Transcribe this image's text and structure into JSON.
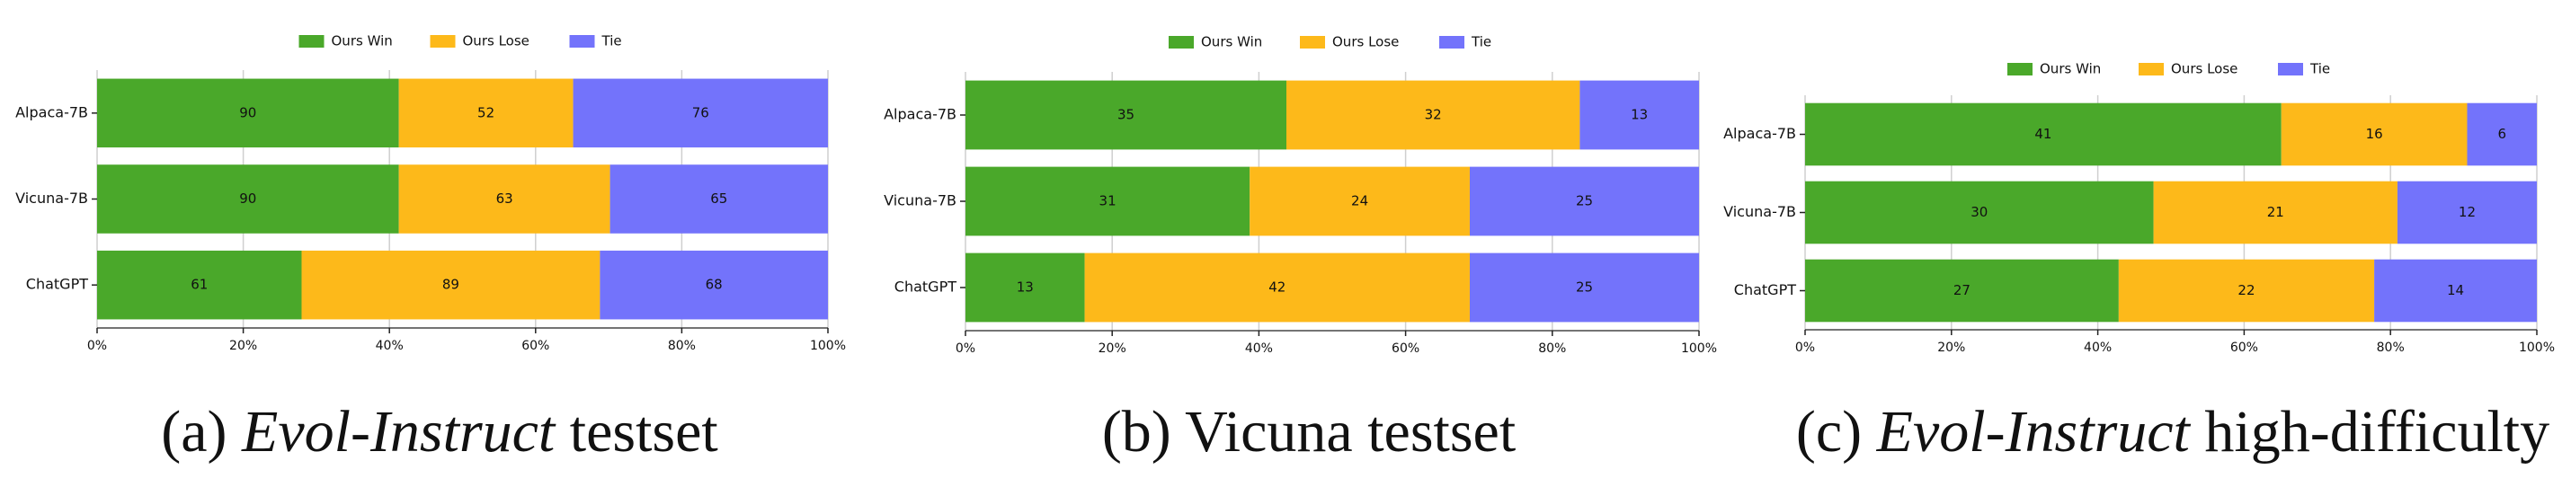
{
  "chart_data": [
    {
      "type": "bar",
      "orientation": "horizontal",
      "stacked": "percent",
      "grid": true,
      "legend": "top",
      "categories": [
        "Alpaca-7B",
        "Vicuna-7B",
        "ChatGPT"
      ],
      "series": [
        {
          "name": "Ours Win",
          "color": "#4aa82a",
          "values": [
            90,
            90,
            61
          ]
        },
        {
          "name": "Ours Lose",
          "color": "#fdb91a",
          "values": [
            52,
            63,
            89
          ]
        },
        {
          "name": "Tie",
          "color": "#7373fb",
          "values": [
            76,
            65,
            68
          ]
        }
      ],
      "xlim": [
        0,
        100
      ],
      "xticks": [
        {
          "value": 0,
          "label": "0%"
        },
        {
          "value": 20,
          "label": "20%"
        },
        {
          "value": 40,
          "label": "40%"
        },
        {
          "value": 60,
          "label": "60%"
        },
        {
          "value": 80,
          "label": "80%"
        },
        {
          "value": 100,
          "label": "100%"
        }
      ],
      "caption": [
        {
          "text": "(a) ",
          "italic": false
        },
        {
          "text": "Evol-Instruct",
          "italic": true
        },
        {
          "text": " testset",
          "italic": false
        }
      ]
    },
    {
      "type": "bar",
      "orientation": "horizontal",
      "stacked": "percent",
      "grid": true,
      "legend": "top",
      "categories": [
        "Alpaca-7B",
        "Vicuna-7B",
        "ChatGPT"
      ],
      "series": [
        {
          "name": "Ours Win",
          "color": "#4aa82a",
          "values": [
            35,
            31,
            13
          ]
        },
        {
          "name": "Ours Lose",
          "color": "#fdb91a",
          "values": [
            32,
            24,
            42
          ]
        },
        {
          "name": "Tie",
          "color": "#7373fb",
          "values": [
            13,
            25,
            25
          ]
        }
      ],
      "xlim": [
        0,
        100
      ],
      "xticks": [
        {
          "value": 0,
          "label": "0%"
        },
        {
          "value": 20,
          "label": "20%"
        },
        {
          "value": 40,
          "label": "40%"
        },
        {
          "value": 60,
          "label": "60%"
        },
        {
          "value": 80,
          "label": "80%"
        },
        {
          "value": 100,
          "label": "100%"
        }
      ],
      "caption": [
        {
          "text": "(b) Vicuna testset",
          "italic": false
        }
      ]
    },
    {
      "type": "bar",
      "orientation": "horizontal",
      "stacked": "percent",
      "grid": true,
      "legend": "top",
      "categories": [
        "Alpaca-7B",
        "Vicuna-7B",
        "ChatGPT"
      ],
      "series": [
        {
          "name": "Ours Win",
          "color": "#4aa82a",
          "values": [
            41,
            30,
            27
          ]
        },
        {
          "name": "Ours Lose",
          "color": "#fdb91a",
          "values": [
            16,
            21,
            22
          ]
        },
        {
          "name": "Tie",
          "color": "#7373fb",
          "values": [
            6,
            12,
            14
          ]
        }
      ],
      "xlim": [
        0,
        100
      ],
      "xticks": [
        {
          "value": 0,
          "label": "0%"
        },
        {
          "value": 20,
          "label": "20%"
        },
        {
          "value": 40,
          "label": "40%"
        },
        {
          "value": 60,
          "label": "60%"
        },
        {
          "value": 80,
          "label": "80%"
        },
        {
          "value": 100,
          "label": "100%"
        }
      ],
      "caption": [
        {
          "text": "(c) ",
          "italic": false
        },
        {
          "text": "Evol-Instruct",
          "italic": true
        },
        {
          "text": " high-difficulty",
          "italic": false
        }
      ]
    }
  ]
}
